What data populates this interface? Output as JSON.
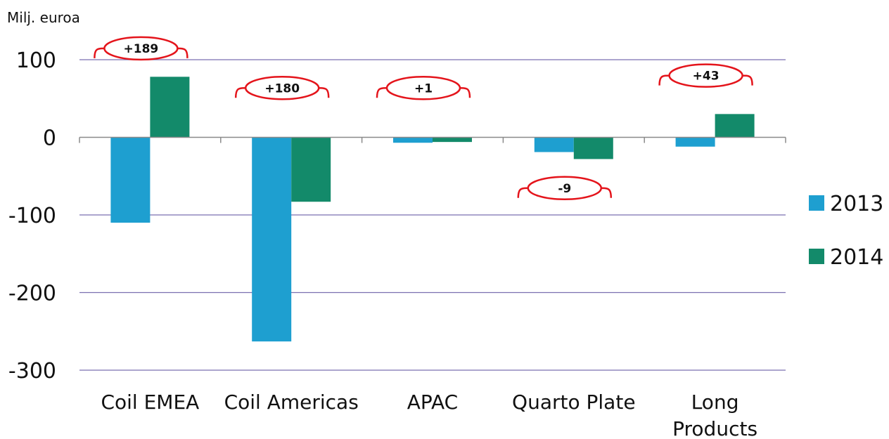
{
  "chart_data": {
    "type": "bar",
    "unit_label": "Milj. euroa",
    "categories": [
      [
        "Coil EMEA"
      ],
      [
        "Coil Americas"
      ],
      [
        "APAC"
      ],
      [
        "Quarto Plate"
      ],
      [
        "Long",
        "Products"
      ]
    ],
    "series": [
      {
        "name": "2013",
        "color": "#1e9fd0",
        "values": [
          -110,
          -263,
          -7,
          -19,
          -12
        ]
      },
      {
        "name": "2014",
        "color": "#138a6a",
        "values": [
          78,
          -83,
          -6,
          -28,
          30
        ]
      }
    ],
    "ylim": [
      -300,
      100
    ],
    "yticks": [
      100,
      0,
      -100,
      -200,
      -300
    ],
    "annotations": [
      {
        "category": "Coil EMEA",
        "label": "+189",
        "value": 101
      },
      {
        "category": "Coil Americas",
        "label": "+180",
        "value": 50
      },
      {
        "category": "APAC",
        "label": "+1",
        "value": 50
      },
      {
        "category": "Quarto Plate",
        "label": "-9",
        "value": -79
      },
      {
        "category": "Long Products",
        "label": "+43",
        "value": 66
      }
    ],
    "annotation_color": "#e4141b",
    "grid": true,
    "legend_position": "right"
  }
}
